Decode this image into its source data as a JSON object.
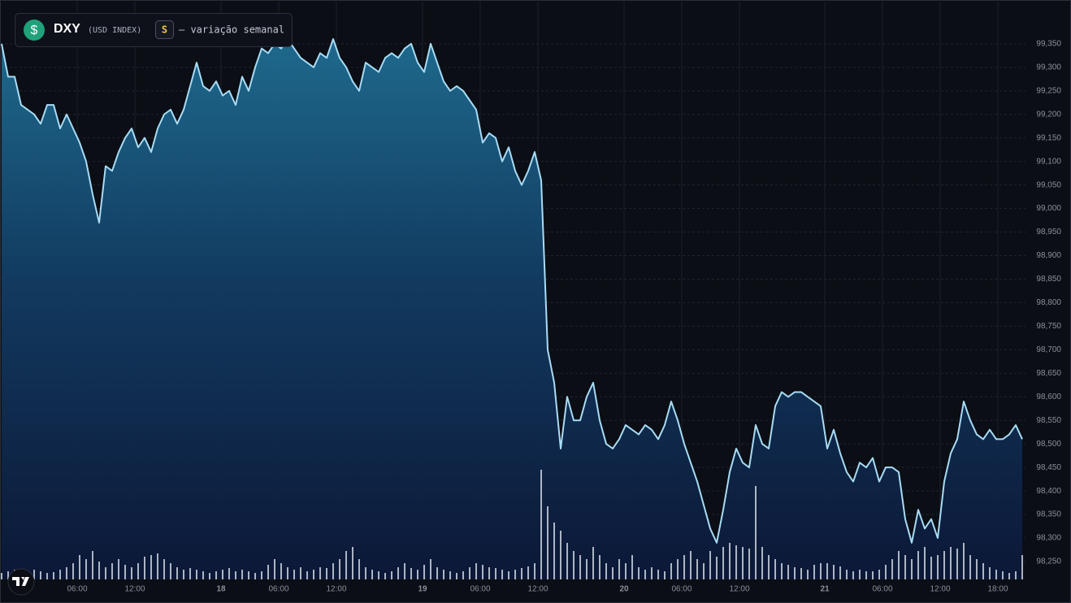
{
  "chart_data": {
    "type": "line",
    "title": "DXY",
    "subtitle": "(USD INDEX)",
    "icon_symbol": "$",
    "badge": "S",
    "annotation": "— variação semanal",
    "color": "#a8dcf5",
    "volume_color": "#c9d1dc",
    "grid": true,
    "values": [
      99.35,
      99.28,
      99.28,
      99.22,
      99.21,
      99.2,
      99.18,
      99.22,
      99.22,
      99.17,
      99.2,
      99.17,
      99.14,
      99.1,
      99.03,
      98.97,
      99.09,
      99.08,
      99.12,
      99.15,
      99.17,
      99.13,
      99.15,
      99.12,
      99.17,
      99.2,
      99.21,
      99.18,
      99.21,
      99.26,
      99.31,
      99.26,
      99.25,
      99.27,
      99.24,
      99.25,
      99.22,
      99.28,
      99.25,
      99.3,
      99.34,
      99.33,
      99.35,
      99.34,
      99.36,
      99.34,
      99.32,
      99.31,
      99.3,
      99.33,
      99.32,
      99.36,
      99.32,
      99.3,
      99.27,
      99.25,
      99.31,
      99.3,
      99.29,
      99.32,
      99.33,
      99.32,
      99.34,
      99.35,
      99.31,
      99.29,
      99.35,
      99.31,
      99.27,
      99.25,
      99.26,
      99.25,
      99.23,
      99.21,
      99.14,
      99.16,
      99.15,
      99.1,
      99.13,
      99.08,
      99.05,
      99.08,
      99.12,
      99.06,
      98.7,
      98.63,
      98.49,
      98.6,
      98.55,
      98.55,
      98.6,
      98.63,
      98.55,
      98.5,
      98.49,
      98.51,
      98.54,
      98.53,
      98.52,
      98.54,
      98.53,
      98.51,
      98.54,
      98.59,
      98.55,
      98.5,
      98.46,
      98.42,
      98.37,
      98.32,
      98.29,
      98.36,
      98.44,
      98.49,
      98.46,
      98.45,
      98.54,
      98.5,
      98.49,
      98.58,
      98.61,
      98.6,
      98.61,
      98.61,
      98.6,
      98.59,
      98.58,
      98.49,
      98.53,
      98.48,
      98.44,
      98.42,
      98.46,
      98.45,
      98.47,
      98.42,
      98.45,
      98.45,
      98.44,
      98.34,
      98.29,
      98.36,
      98.32,
      98.34,
      98.3,
      98.42,
      98.48,
      98.51,
      98.59,
      98.55,
      98.52,
      98.51,
      98.53,
      98.51,
      98.51,
      98.52,
      98.54,
      98.51
    ],
    "volume": [
      8,
      10,
      12,
      8,
      10,
      12,
      10,
      8,
      9,
      12,
      15,
      20,
      30,
      25,
      35,
      22,
      15,
      20,
      25,
      18,
      15,
      20,
      28,
      30,
      32,
      25,
      20,
      15,
      12,
      14,
      12,
      10,
      8,
      10,
      12,
      14,
      10,
      12,
      10,
      8,
      10,
      18,
      25,
      20,
      15,
      12,
      15,
      10,
      12,
      15,
      14,
      20,
      25,
      35,
      40,
      25,
      15,
      12,
      10,
      8,
      10,
      15,
      20,
      14,
      12,
      18,
      25,
      15,
      12,
      10,
      8,
      10,
      15,
      20,
      18,
      15,
      14,
      12,
      10,
      12,
      14,
      16,
      20,
      135,
      90,
      70,
      60,
      45,
      35,
      30,
      25,
      40,
      30,
      20,
      15,
      25,
      20,
      30,
      15,
      12,
      15,
      12,
      10,
      20,
      25,
      30,
      35,
      25,
      20,
      35,
      28,
      40,
      45,
      42,
      40,
      38,
      115,
      40,
      30,
      25,
      20,
      18,
      15,
      14,
      12,
      18,
      20,
      20,
      18,
      16,
      12,
      10,
      12,
      10,
      10,
      12,
      18,
      25,
      35,
      30,
      25,
      35,
      40,
      28,
      30,
      35,
      40,
      38,
      45,
      30,
      25,
      20,
      15,
      12,
      10,
      8,
      10,
      30
    ],
    "vlim": [
      0,
      400
    ],
    "xlim": [
      -0.25,
      157.5
    ],
    "xticks": [
      {
        "value": 11.625,
        "label": "06:00"
      },
      {
        "value": 20.5,
        "label": "12:00"
      },
      {
        "value": 33.75,
        "label": "18"
      },
      {
        "value": 42.625,
        "label": "06:00"
      },
      {
        "value": 51.5,
        "label": "12:00"
      },
      {
        "value": 64.75,
        "label": "19"
      },
      {
        "value": 73.625,
        "label": "06:00"
      },
      {
        "value": 82.5,
        "label": "12:00"
      },
      {
        "value": 95.75,
        "label": "20"
      },
      {
        "value": 104.625,
        "label": "06:00"
      },
      {
        "value": 113.5,
        "label": "12:00"
      },
      {
        "value": 126.625,
        "label": "21"
      },
      {
        "value": 135.5,
        "label": "06:00"
      },
      {
        "value": 144.375,
        "label": "12:00"
      },
      {
        "value": 153.25,
        "label": "18:00"
      }
    ],
    "ylim": [
      98.212,
      99.443
    ],
    "yticks": [
      {
        "value": 99.35,
        "label": "99,350"
      },
      {
        "value": 99.3,
        "label": "99,300"
      },
      {
        "value": 99.25,
        "label": "99,250"
      },
      {
        "value": 99.2,
        "label": "99,200"
      },
      {
        "value": 99.15,
        "label": "99,150"
      },
      {
        "value": 99.1,
        "label": "99,100"
      },
      {
        "value": 99.05,
        "label": "99,050"
      },
      {
        "value": 99.0,
        "label": "99,000"
      },
      {
        "value": 98.95,
        "label": "98,950"
      },
      {
        "value": 98.9,
        "label": "98,900"
      },
      {
        "value": 98.85,
        "label": "98,850"
      },
      {
        "value": 98.8,
        "label": "98,800"
      },
      {
        "value": 98.75,
        "label": "98,750"
      },
      {
        "value": 98.7,
        "label": "98,700"
      },
      {
        "value": 98.65,
        "label": "98,650"
      },
      {
        "value": 98.6,
        "label": "98,600"
      },
      {
        "value": 98.55,
        "label": "98,550"
      },
      {
        "value": 98.5,
        "label": "98,500"
      },
      {
        "value": 98.45,
        "label": "98,450"
      },
      {
        "value": 98.4,
        "label": "98,400"
      },
      {
        "value": 98.35,
        "label": "98,350"
      },
      {
        "value": 98.3,
        "label": "98,300"
      },
      {
        "value": 98.25,
        "label": "98,250"
      }
    ]
  }
}
